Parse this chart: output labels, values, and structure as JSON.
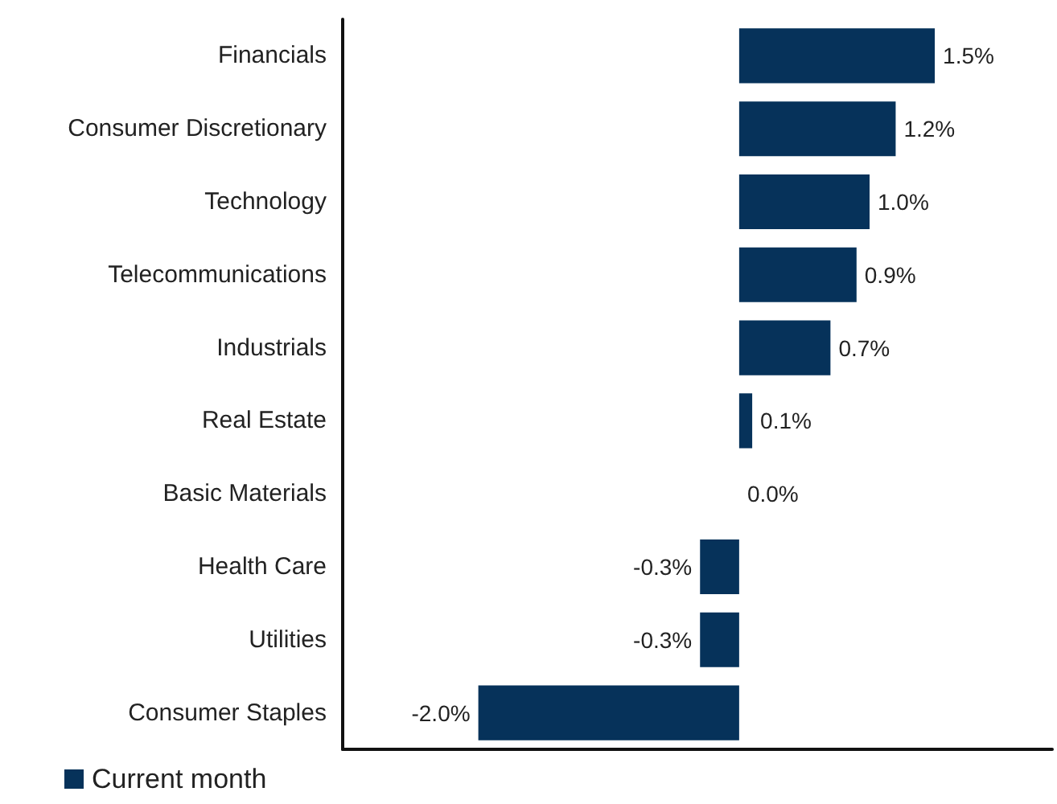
{
  "chart_data": {
    "type": "bar",
    "orientation": "horizontal",
    "categories": [
      "Financials",
      "Consumer Discretionary",
      "Technology",
      "Telecommunications",
      "Industrials",
      "Real Estate",
      "Basic Materials",
      "Health Care",
      "Utilities",
      "Consumer Staples"
    ],
    "series": [
      {
        "name": "Current month",
        "color": "#06325a",
        "values": [
          1.5,
          1.2,
          1.0,
          0.9,
          0.7,
          0.1,
          0.0,
          -0.3,
          -0.3,
          -2.0
        ],
        "value_labels": [
          "1.5%",
          "1.2%",
          "1.0%",
          "0.9%",
          "0.7%",
          "0.1%",
          "0.0%",
          "-0.3%",
          "-0.3%",
          "-2.0%"
        ]
      }
    ],
    "legend": "bottom left",
    "grid": false,
    "tick_labels": "y"
  }
}
